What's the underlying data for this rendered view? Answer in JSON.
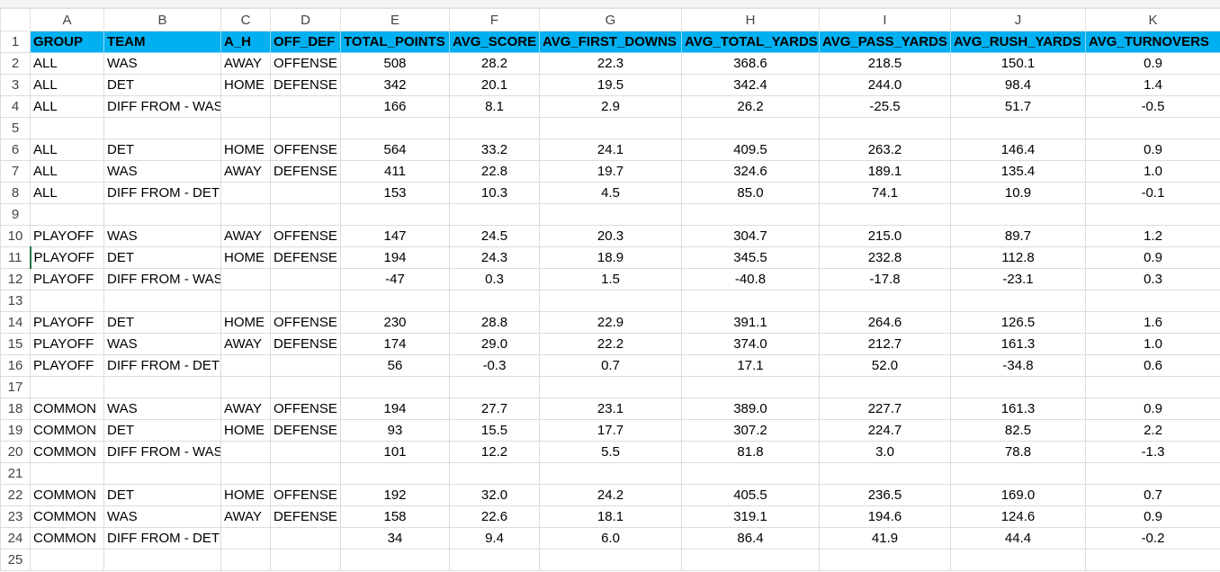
{
  "columns": [
    "A",
    "B",
    "C",
    "D",
    "E",
    "F",
    "G",
    "H",
    "I",
    "J",
    "K"
  ],
  "rows": [
    {
      "n": "1",
      "cells": [
        "GROUP",
        "TEAM",
        "A_H",
        "OFF_DEF",
        "TOTAL_POINTS",
        "AVG_SCORE",
        "AVG_FIRST_DOWNS",
        "AVG_TOTAL_YARDS",
        "AVG_PASS_YARDS",
        "AVG_RUSH_YARDS",
        "AVG_TURNOVERS"
      ]
    },
    {
      "n": "2",
      "cells": [
        "ALL",
        "WAS",
        "AWAY",
        "OFFENSE",
        "508",
        "28.2",
        "22.3",
        "368.6",
        "218.5",
        "150.1",
        "0.9"
      ]
    },
    {
      "n": "3",
      "cells": [
        "ALL",
        "DET",
        "HOME",
        "DEFENSE",
        "342",
        "20.1",
        "19.5",
        "342.4",
        "244.0",
        "98.4",
        "1.4"
      ]
    },
    {
      "n": "4",
      "cells": [
        "ALL",
        "DIFF FROM - WAS",
        "",
        "",
        "166",
        "8.1",
        "2.9",
        "26.2",
        "-25.5",
        "51.7",
        "-0.5"
      ]
    },
    {
      "n": "5",
      "cells": [
        "",
        "",
        "",
        "",
        "",
        "",
        "",
        "",
        "",
        "",
        ""
      ]
    },
    {
      "n": "6",
      "cells": [
        "ALL",
        "DET",
        "HOME",
        "OFFENSE",
        "564",
        "33.2",
        "24.1",
        "409.5",
        "263.2",
        "146.4",
        "0.9"
      ]
    },
    {
      "n": "7",
      "cells": [
        "ALL",
        "WAS",
        "AWAY",
        "DEFENSE",
        "411",
        "22.8",
        "19.7",
        "324.6",
        "189.1",
        "135.4",
        "1.0"
      ]
    },
    {
      "n": "8",
      "cells": [
        "ALL",
        "DIFF FROM - DET",
        "",
        "",
        "153",
        "10.3",
        "4.5",
        "85.0",
        "74.1",
        "10.9",
        "-0.1"
      ]
    },
    {
      "n": "9",
      "cells": [
        "",
        "",
        "",
        "",
        "",
        "",
        "",
        "",
        "",
        "",
        ""
      ]
    },
    {
      "n": "10",
      "cells": [
        "PLAYOFF",
        "WAS",
        "AWAY",
        "OFFENSE",
        "147",
        "24.5",
        "20.3",
        "304.7",
        "215.0",
        "89.7",
        "1.2"
      ]
    },
    {
      "n": "11",
      "cells": [
        "PLAYOFF",
        "DET",
        "HOME",
        "DEFENSE",
        "194",
        "24.3",
        "18.9",
        "345.5",
        "232.8",
        "112.8",
        "0.9"
      ]
    },
    {
      "n": "12",
      "cells": [
        "PLAYOFF",
        "DIFF FROM - WAS",
        "",
        "",
        "-47",
        "0.3",
        "1.5",
        "-40.8",
        "-17.8",
        "-23.1",
        "0.3"
      ]
    },
    {
      "n": "13",
      "cells": [
        "",
        "",
        "",
        "",
        "",
        "",
        "",
        "",
        "",
        "",
        ""
      ]
    },
    {
      "n": "14",
      "cells": [
        "PLAYOFF",
        "DET",
        "HOME",
        "OFFENSE",
        "230",
        "28.8",
        "22.9",
        "391.1",
        "264.6",
        "126.5",
        "1.6"
      ]
    },
    {
      "n": "15",
      "cells": [
        "PLAYOFF",
        "WAS",
        "AWAY",
        "DEFENSE",
        "174",
        "29.0",
        "22.2",
        "374.0",
        "212.7",
        "161.3",
        "1.0"
      ]
    },
    {
      "n": "16",
      "cells": [
        "PLAYOFF",
        "DIFF FROM - DET",
        "",
        "",
        "56",
        "-0.3",
        "0.7",
        "17.1",
        "52.0",
        "-34.8",
        "0.6"
      ]
    },
    {
      "n": "17",
      "cells": [
        "",
        "",
        "",
        "",
        "",
        "",
        "",
        "",
        "",
        "",
        ""
      ]
    },
    {
      "n": "18",
      "cells": [
        "COMMON",
        "WAS",
        "AWAY",
        "OFFENSE",
        "194",
        "27.7",
        "23.1",
        "389.0",
        "227.7",
        "161.3",
        "0.9"
      ]
    },
    {
      "n": "19",
      "cells": [
        "COMMON",
        "DET",
        "HOME",
        "DEFENSE",
        "93",
        "15.5",
        "17.7",
        "307.2",
        "224.7",
        "82.5",
        "2.2"
      ]
    },
    {
      "n": "20",
      "cells": [
        "COMMON",
        "DIFF FROM - WAS",
        "",
        "",
        "101",
        "12.2",
        "5.5",
        "81.8",
        "3.0",
        "78.8",
        "-1.3"
      ]
    },
    {
      "n": "21",
      "cells": [
        "",
        "",
        "",
        "",
        "",
        "",
        "",
        "",
        "",
        "",
        ""
      ]
    },
    {
      "n": "22",
      "cells": [
        "COMMON",
        "DET",
        "HOME",
        "OFFENSE",
        "192",
        "32.0",
        "24.2",
        "405.5",
        "236.5",
        "169.0",
        "0.7"
      ]
    },
    {
      "n": "23",
      "cells": [
        "COMMON",
        "WAS",
        "AWAY",
        "DEFENSE",
        "158",
        "22.6",
        "18.1",
        "319.1",
        "194.6",
        "124.6",
        "0.9"
      ]
    },
    {
      "n": "24",
      "cells": [
        "COMMON",
        "DIFF FROM - DET",
        "",
        "",
        "34",
        "9.4",
        "6.0",
        "86.4",
        "41.9",
        "44.4",
        "-0.2"
      ]
    },
    {
      "n": "25",
      "cells": [
        "",
        "",
        "",
        "",
        "",
        "",
        "",
        "",
        "",
        "",
        ""
      ]
    }
  ],
  "colors": {
    "header_fill": "#00b0f0",
    "gridline": "#dcdcdc",
    "selection": "#217346"
  }
}
